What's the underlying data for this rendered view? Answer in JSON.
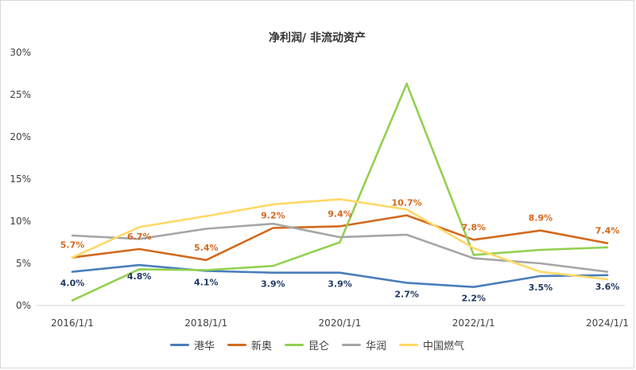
{
  "chart_data": {
    "type": "line",
    "title": "净利润/ 非流动资产",
    "x": [
      "2016/1/1",
      "2017/1/1",
      "2018/1/1",
      "2019/1/1",
      "2020/1/1",
      "2021/1/1",
      "2022/1/1",
      "2023/1/1",
      "2024/1/1"
    ],
    "x_tick_labels": [
      "2016/1/1",
      "2018/1/1",
      "2020/1/1",
      "2022/1/1",
      "2024/1/1"
    ],
    "y_tick_labels": [
      "0%",
      "5%",
      "10%",
      "15%",
      "20%",
      "25%",
      "30%"
    ],
    "ylim": [
      0,
      30
    ],
    "grid": false,
    "legend_position": "bottom",
    "series": [
      {
        "name": "港华",
        "color": "#4a7ebb",
        "values": [
          4.0,
          4.8,
          4.1,
          3.9,
          3.9,
          2.7,
          2.2,
          3.5,
          3.6
        ],
        "labels": [
          "4.0%",
          "4.8%",
          "4.1%",
          "3.9%",
          "3.9%",
          "2.7%",
          "2.2%",
          "3.5%",
          "3.6%"
        ],
        "label_color": "#1f3864"
      },
      {
        "name": "新奥",
        "color": "#d2691e",
        "values": [
          5.7,
          6.7,
          5.4,
          9.2,
          9.4,
          10.7,
          7.8,
          8.9,
          7.4
        ],
        "labels": [
          "5.7%",
          "6.7%",
          "5.4%",
          "9.2%",
          "9.4%",
          "10.7%",
          "7.8%",
          "8.9%",
          "7.4%"
        ],
        "label_color": "#d2691e"
      },
      {
        "name": "昆仑",
        "color": "#92d050",
        "values": [
          0.6,
          4.3,
          4.2,
          4.7,
          7.5,
          26.3,
          6.0,
          6.6,
          6.9
        ]
      },
      {
        "name": "华润",
        "color": "#a6a6a6",
        "values": [
          8.3,
          7.9,
          9.1,
          9.7,
          8.1,
          8.4,
          5.6,
          5.0,
          4.0
        ]
      },
      {
        "name": "中国燃气",
        "color": "#ffd966",
        "values": [
          5.7,
          9.3,
          10.6,
          12.0,
          12.6,
          11.4,
          6.8,
          4.0,
          3.1
        ]
      }
    ]
  }
}
